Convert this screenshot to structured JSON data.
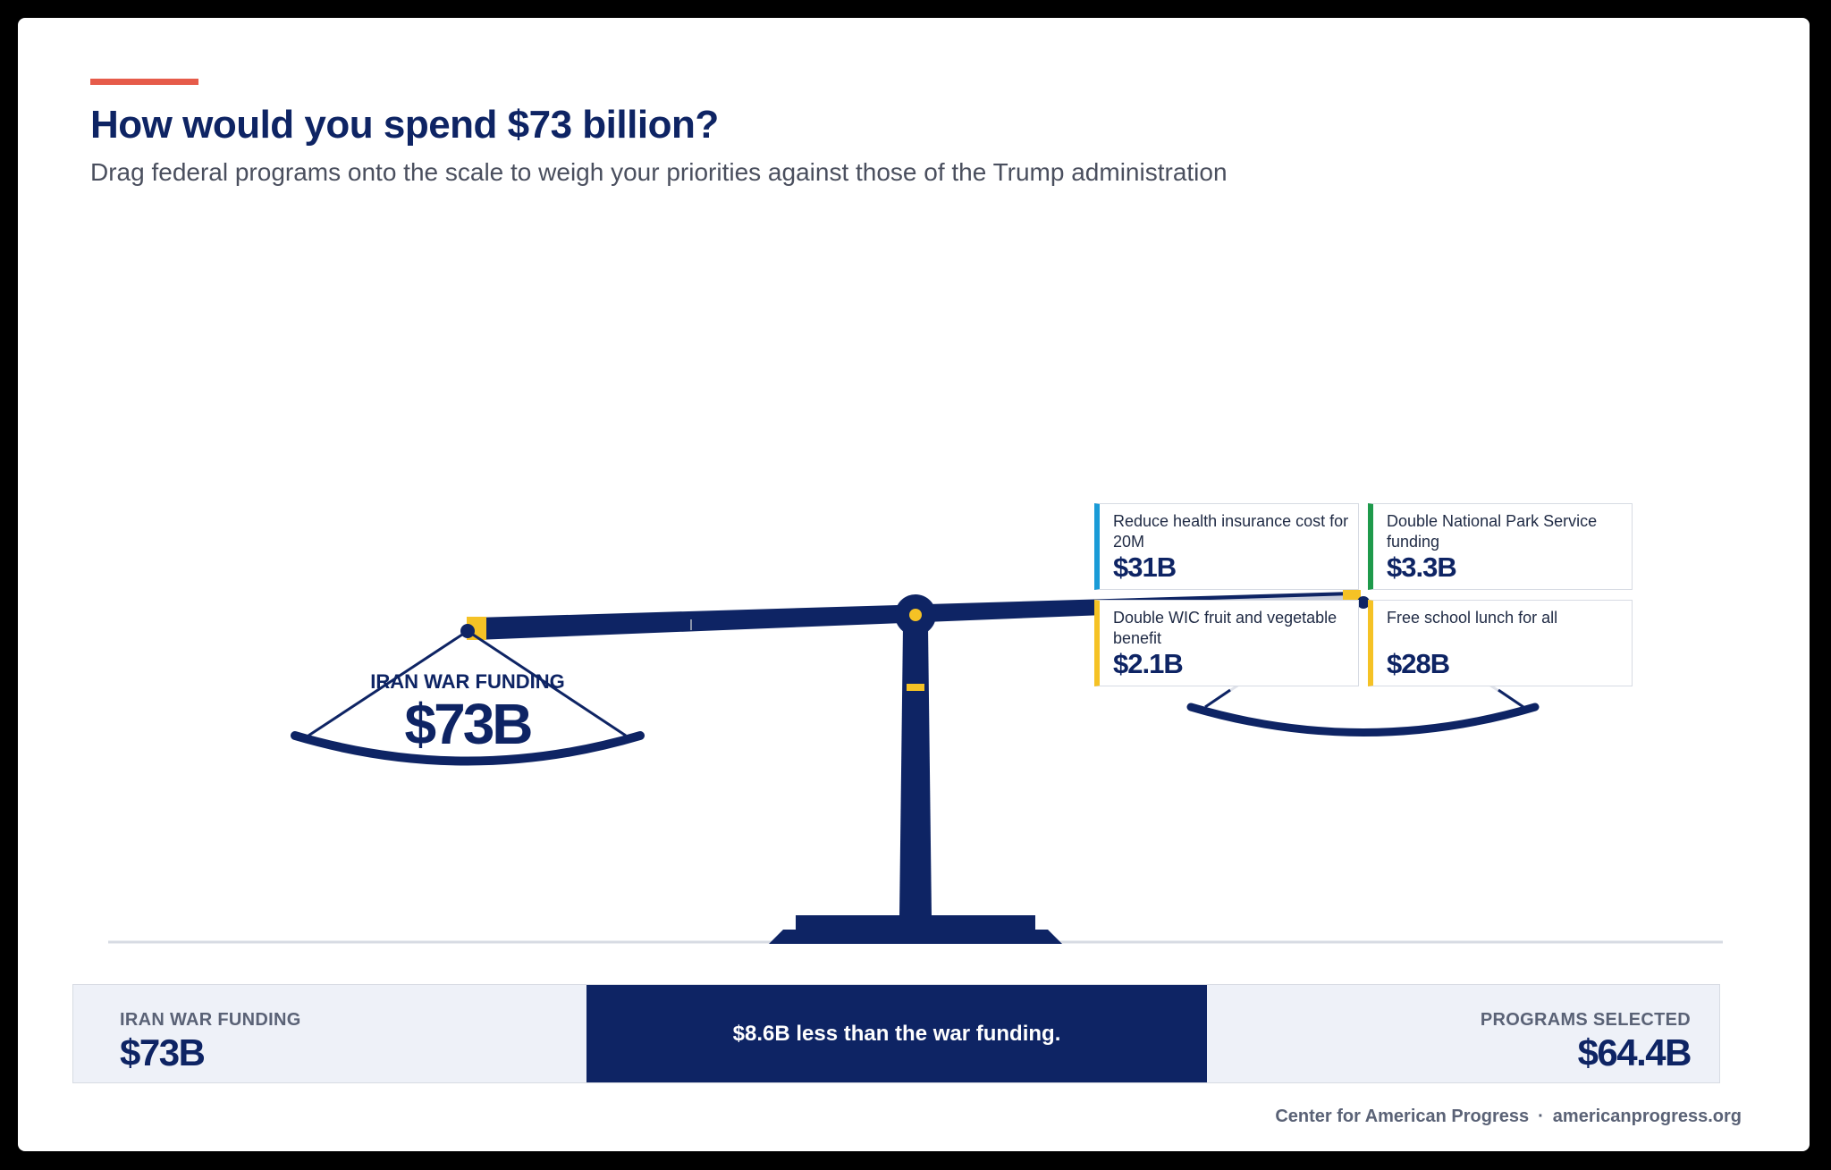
{
  "header": {
    "title": "How would you spend $73 billion?",
    "subtitle": "Drag federal programs onto the scale to weigh your priorities against those of the Trump administration"
  },
  "scale": {
    "left_pan_label": "IRAN WAR FUNDING",
    "left_pan_value": "$73B"
  },
  "programs": [
    {
      "label": "Reduce health insurance cost for 20M",
      "value": "$31B",
      "color": "#1a9bd7"
    },
    {
      "label": "Double National Park Service funding",
      "value": "$3.3B",
      "color": "#1e9a4b"
    },
    {
      "label": "Double WIC fruit and vegetable benefit",
      "value": "$2.1B",
      "color": "#f5c225"
    },
    {
      "label": "Free school lunch for all",
      "value": "$28B",
      "color": "#f5c225"
    }
  ],
  "summary": {
    "left_label": "IRAN WAR FUNDING",
    "left_value": "$73B",
    "middle_text": "$8.6B less than the war funding.",
    "right_label": "PROGRAMS SELECTED",
    "right_value": "$64.4B"
  },
  "footer": {
    "org": "Center for American Progress",
    "separator": "·",
    "url": "americanprogress.org"
  },
  "colors": {
    "navy": "#0e2464",
    "accent": "#e65b4a",
    "gold": "#f5c225",
    "panel": "#eef1f8"
  }
}
